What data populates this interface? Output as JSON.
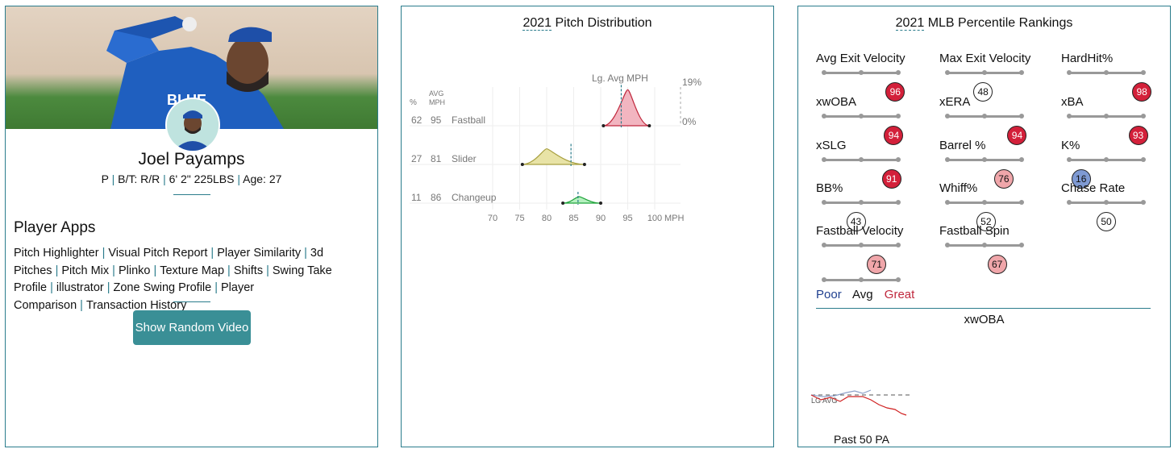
{
  "player": {
    "name": "Joel Payamps",
    "position": "P",
    "bat_throw": "B/T: R/R",
    "height_weight": "6' 2\" 225LBS",
    "age": "Age: 27"
  },
  "apps": {
    "title": "Player Apps",
    "links": [
      "Pitch Highlighter",
      "Visual Pitch Report",
      "Player Similarity",
      "3d Pitches",
      "Pitch Mix",
      "Plinko",
      "Texture Map",
      "Shifts",
      "Swing Take Profile",
      "illustrator",
      "Zone Swing Profile",
      "Player Comparison",
      "Transaction History"
    ],
    "button": "Show Random Video"
  },
  "distribution": {
    "title_year": "2021",
    "title_rest": " Pitch Distribution",
    "col_pct": "%",
    "col_avg": "AVG",
    "col_mph": "MPH",
    "lg_avg_label": "Lg. Avg MPH",
    "pct_max": "19%",
    "pct_min": "0%",
    "axis_unit": "MPH",
    "ticks": [
      70,
      75,
      80,
      85,
      90,
      95,
      100
    ],
    "pitches": [
      {
        "pct": "62",
        "avg": "95",
        "name": "Fastball",
        "color": "#f2b5c0",
        "stroke": "#c0283d",
        "min": 90.5,
        "max": 99,
        "peak": 95,
        "lg_avg": 93.8
      },
      {
        "pct": "27",
        "avg": "81",
        "name": "Slider",
        "color": "#e8e3a6",
        "stroke": "#a8a040",
        "min": 75.5,
        "max": 87,
        "peak": 80,
        "lg_avg": 84.5
      },
      {
        "pct": "11",
        "avg": "86",
        "name": "Changeup",
        "color": "#b5f0bf",
        "stroke": "#1fa33a",
        "min": 83,
        "max": 90,
        "peak": 86,
        "lg_avg": 85.8
      }
    ]
  },
  "rankings": {
    "title_year": "2021",
    "title_rest": " MLB Percentile Rankings",
    "metrics": [
      {
        "label": "Avg Exit Velocity",
        "value": 96
      },
      {
        "label": "Max Exit Velocity",
        "value": 48
      },
      {
        "label": "HardHit%",
        "value": 98
      },
      {
        "label": "xwOBA",
        "value": 94
      },
      {
        "label": "xERA",
        "value": 94
      },
      {
        "label": "xBA",
        "value": 93
      },
      {
        "label": "xSLG",
        "value": 91
      },
      {
        "label": "Barrel %",
        "value": 76
      },
      {
        "label": "K%",
        "value": 16
      },
      {
        "label": "BB%",
        "value": 43
      },
      {
        "label": "Whiff%",
        "value": 52
      },
      {
        "label": "Chase Rate",
        "value": 50
      },
      {
        "label": "Fastball Velocity",
        "value": 71
      },
      {
        "label": "Fastball Spin",
        "value": 67
      }
    ],
    "legend": {
      "poor": "Poor",
      "avg": "Avg",
      "great": "Great"
    },
    "colors": {
      "poor": "#1f3f8f",
      "great": "#c0283d"
    },
    "xwoba_title": "xwOBA",
    "lg_avg_label": "LG AVG",
    "past_label": "Past 50 PA"
  }
}
